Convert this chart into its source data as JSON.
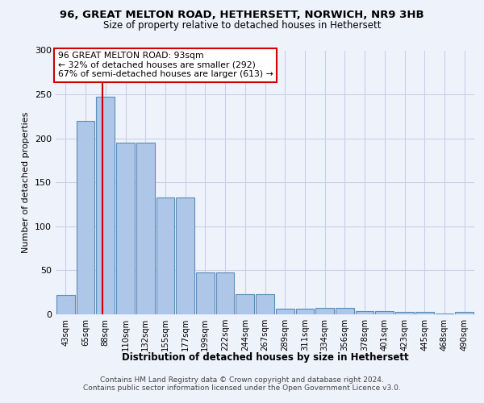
{
  "title": "96, GREAT MELTON ROAD, HETHERSETT, NORWICH, NR9 3HB",
  "subtitle": "Size of property relative to detached houses in Hethersett",
  "xlabel": "Distribution of detached houses by size in Hethersett",
  "ylabel": "Number of detached properties",
  "bar_labels": [
    "43sqm",
    "65sqm",
    "88sqm",
    "110sqm",
    "132sqm",
    "155sqm",
    "177sqm",
    "199sqm",
    "222sqm",
    "244sqm",
    "267sqm",
    "289sqm",
    "311sqm",
    "334sqm",
    "356sqm",
    "378sqm",
    "401sqm",
    "423sqm",
    "445sqm",
    "468sqm",
    "490sqm"
  ],
  "bar_heights": [
    22,
    220,
    247,
    195,
    195,
    133,
    133,
    48,
    48,
    23,
    23,
    6,
    6,
    7,
    7,
    4,
    4,
    3,
    3,
    1,
    3
  ],
  "bar_color": "#aec6e8",
  "bar_edge_color": "#5b8db8",
  "annotation_text_line1": "96 GREAT MELTON ROAD: 93sqm",
  "annotation_text_line2": "← 32% of detached houses are smaller (292)",
  "annotation_text_line3": "67% of semi-detached houses are larger (613) →",
  "annotation_box_color": "#ffffff",
  "annotation_box_edge_color": "#cc0000",
  "vline_x_index": 1.85,
  "vline_color": "#cc0000",
  "ylim": [
    0,
    300
  ],
  "yticks": [
    0,
    50,
    100,
    150,
    200,
    250,
    300
  ],
  "footer_line1": "Contains HM Land Registry data © Crown copyright and database right 2024.",
  "footer_line2": "Contains public sector information licensed under the Open Government Licence v3.0.",
  "bg_color": "#eef2fb",
  "grid_color": "#c8cfe8"
}
